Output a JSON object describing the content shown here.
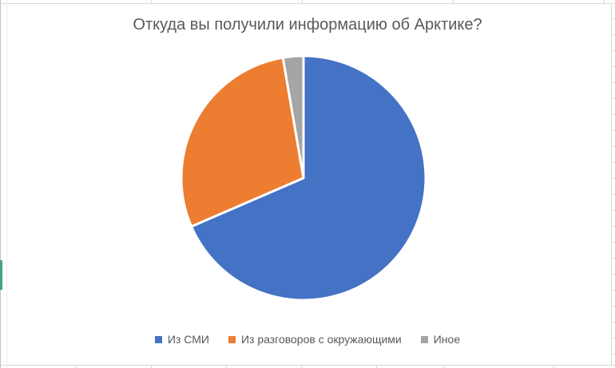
{
  "chart_data": {
    "type": "pie",
    "title": "Откуда вы получили информацию об Арктике?",
    "labels": [
      "Из СМИ",
      "Из разговоров с окружающими",
      "Иное"
    ],
    "values": [
      68.5,
      28.8,
      2.7
    ],
    "values_note": "percent, estimated from slice angles (no data labels visible)",
    "colors": [
      "#4472C4",
      "#ED7D31",
      "#A5A5A5"
    ],
    "slice_border_color": "#FFFFFF",
    "start_angle_deg": 0,
    "direction": "clockwise",
    "legend_position": "bottom",
    "title_color": "#595959",
    "legend_text_color": "#595959",
    "background": "#FFFFFF"
  },
  "artifacts": {
    "gridline_color": "#D9D9D9",
    "green_sliver_color": "#47A188"
  }
}
